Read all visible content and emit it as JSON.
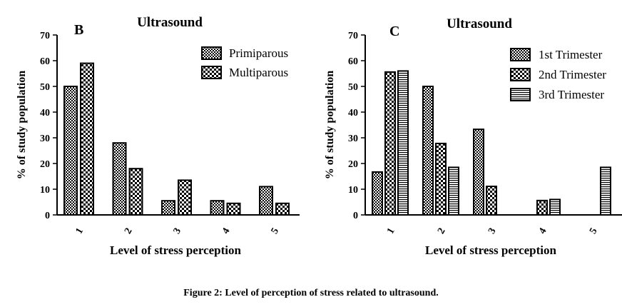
{
  "caption": "Figure 2: Level of perception of stress related to ultrasound.",
  "chart_data": [
    {
      "type": "bar",
      "panel_label": "B",
      "title": "Ultrasound",
      "xlabel": "Level of stress perception",
      "ylabel": "% of study population",
      "ylim": [
        0,
        70
      ],
      "yticks": [
        0,
        10,
        20,
        30,
        40,
        50,
        60,
        70
      ],
      "categories": [
        "1",
        "2",
        "3",
        "4",
        "5"
      ],
      "series": [
        {
          "name": "Primiparous",
          "values": [
            50,
            28,
            5.5,
            5.5,
            11
          ]
        },
        {
          "name": "Multiparous",
          "values": [
            59,
            18,
            13.5,
            4.5,
            4.5
          ]
        }
      ],
      "legend": "top-right",
      "grid": false
    },
    {
      "type": "bar",
      "panel_label": "C",
      "title": "Ultrasound",
      "xlabel": "Level of stress perception",
      "ylabel": "% of study population",
      "ylim": [
        0,
        70
      ],
      "yticks": [
        0,
        10,
        20,
        30,
        40,
        50,
        60,
        70
      ],
      "categories": [
        "1",
        "2",
        "3",
        "4",
        "5"
      ],
      "series": [
        {
          "name": "1st Trimester",
          "values": [
            16.7,
            50,
            33.3,
            0,
            0
          ]
        },
        {
          "name": "2nd Trimester",
          "values": [
            55.6,
            27.8,
            11.1,
            5.6,
            0
          ]
        },
        {
          "name": "3rd Trimester",
          "values": [
            56,
            18.5,
            0,
            6,
            18.5
          ]
        }
      ],
      "legend": "top-right",
      "grid": false
    }
  ]
}
